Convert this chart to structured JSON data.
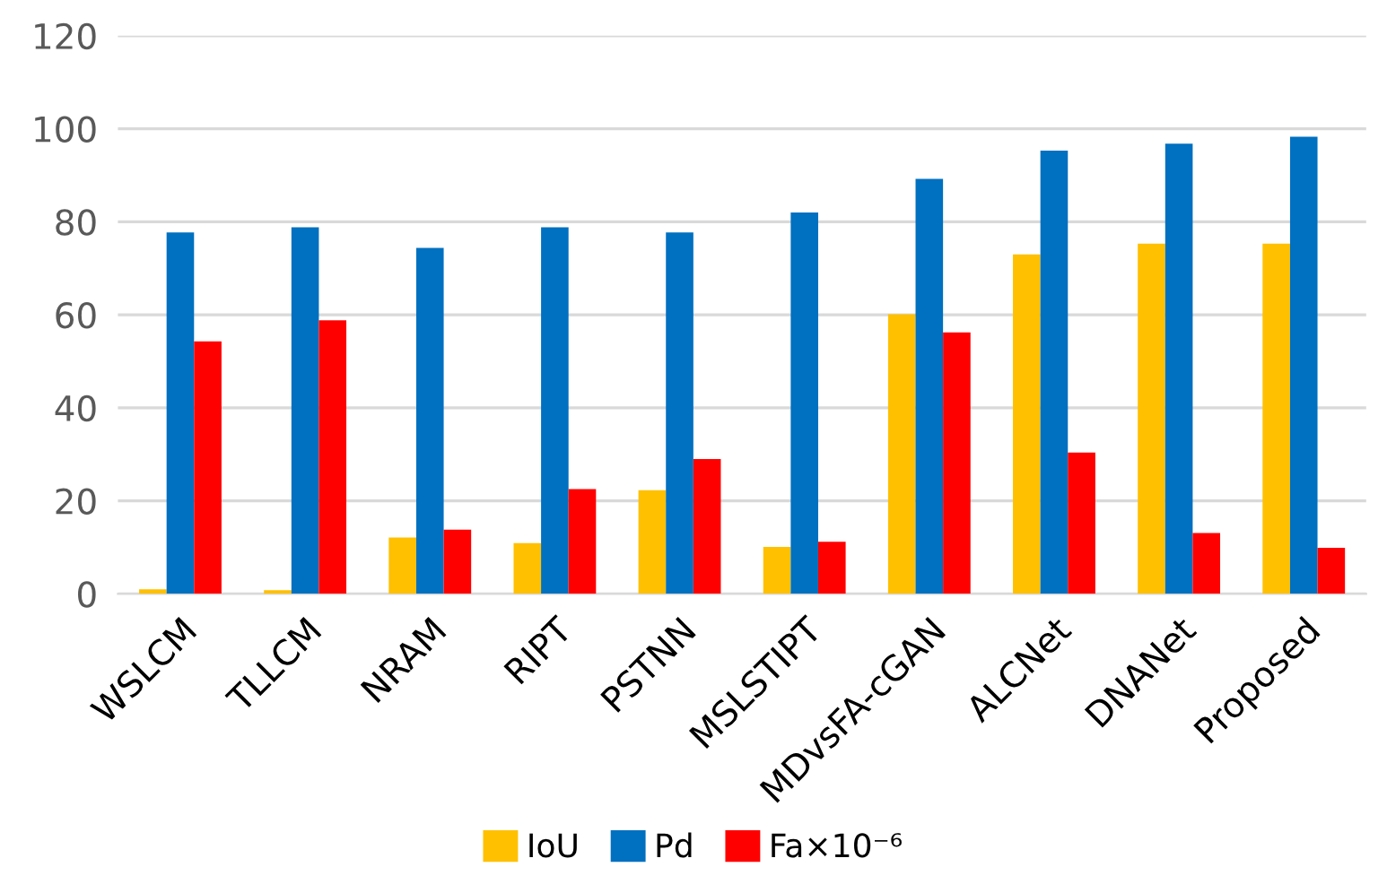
{
  "chart_data": {
    "type": "bar",
    "categories": [
      "WSLCM",
      "TLLCM",
      "NRAM",
      "RIPT",
      "PSTNN",
      "MSLSTIPT",
      "MDvsFA-cGAN",
      "ALCNet",
      "DNANet",
      "Proposed"
    ],
    "series": [
      {
        "name": "IoU",
        "color": "#ffc000",
        "values": [
          1.0,
          0.8,
          12.1,
          10.9,
          22.3,
          10.1,
          60.1,
          73.0,
          75.3,
          75.3
        ]
      },
      {
        "name": "Pd",
        "color": "#0070c0",
        "values": [
          77.7,
          78.8,
          74.4,
          78.8,
          77.7,
          82.0,
          89.2,
          95.3,
          96.8,
          98.3
        ]
      },
      {
        "name": "Fa×10⁻⁶",
        "color": "#ff0000",
        "values": [
          54.3,
          58.8,
          13.8,
          22.5,
          29.0,
          11.2,
          56.2,
          30.4,
          13.1,
          9.9
        ]
      }
    ],
    "ylim": [
      0,
      120
    ],
    "yticks": [
      0,
      20,
      40,
      60,
      80,
      100,
      120
    ],
    "grid": "y",
    "legend": "bottom"
  }
}
